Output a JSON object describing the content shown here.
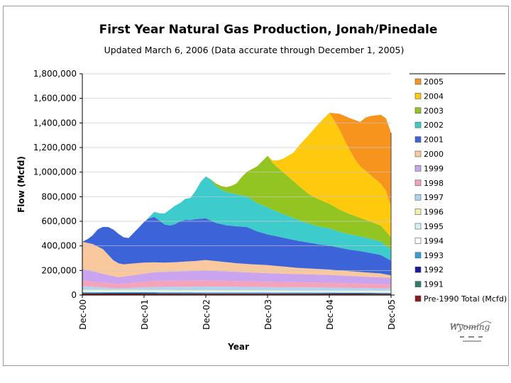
{
  "chart_data": {
    "type": "area",
    "stacked": true,
    "title": "First Year Natural Gas Production, Jonah/Pinedale",
    "subtitle": "Updated March 6, 2006 (Data accurate through December 1, 2005)",
    "xlabel": "Year",
    "ylabel": "Flow (Mcfd)",
    "x_ticks": [
      "Dec-00",
      "Dec-01",
      "Dec-02",
      "Dec-03",
      "Dec-04",
      "Dec-05"
    ],
    "x_months": [
      0,
      12,
      24,
      36,
      48,
      60
    ],
    "y_ticks": [
      "0",
      "200,000",
      "400,000",
      "600,000",
      "800,000",
      "1,000,000",
      "1,200,000",
      "1,400,000",
      "1,600,000",
      "1,800,000"
    ],
    "ylim": [
      0,
      1800000
    ],
    "legend_position": "right",
    "series": [
      {
        "name": "Pre-1990 Total (Mcfd)",
        "color": "#8b1a1a",
        "pts": [
          [
            0,
            12000
          ],
          [
            60,
            8000
          ]
        ]
      },
      {
        "name": "1991",
        "color": "#2e7d6e",
        "pts": [
          [
            0,
            3000
          ],
          [
            60,
            3000
          ]
        ]
      },
      {
        "name": "1992",
        "color": "#1a1aa0",
        "pts": [
          [
            0,
            3000
          ],
          [
            60,
            3000
          ]
        ]
      },
      {
        "name": "1993",
        "color": "#33a0d8",
        "pts": [
          [
            0,
            6000
          ],
          [
            60,
            5000
          ]
        ]
      },
      {
        "name": "1994",
        "color": "#ffffff",
        "pts": [
          [
            0,
            5000
          ],
          [
            60,
            5000
          ]
        ]
      },
      {
        "name": "1995",
        "color": "#d5f2f2",
        "pts": [
          [
            0,
            8000
          ],
          [
            60,
            6000
          ]
        ]
      },
      {
        "name": "1996",
        "color": "#f5f0a8",
        "pts": [
          [
            0,
            6000
          ],
          [
            60,
            5000
          ]
        ]
      },
      {
        "name": "1997",
        "color": "#b0d4f0",
        "pts": [
          [
            0,
            30000
          ],
          [
            7,
            12000
          ],
          [
            14,
            25000
          ],
          [
            24,
            30000
          ],
          [
            36,
            26000
          ],
          [
            48,
            24000
          ],
          [
            60,
            18000
          ]
        ]
      },
      {
        "name": "1998",
        "color": "#f5a3bb",
        "pts": [
          [
            0,
            45000
          ],
          [
            7,
            35000
          ],
          [
            14,
            50000
          ],
          [
            24,
            50000
          ],
          [
            36,
            44000
          ],
          [
            48,
            40000
          ],
          [
            60,
            32000
          ]
        ]
      },
      {
        "name": "1999",
        "color": "#caa4ee",
        "pts": [
          [
            0,
            95000
          ],
          [
            7,
            55000
          ],
          [
            14,
            70000
          ],
          [
            24,
            80000
          ],
          [
            36,
            70000
          ],
          [
            48,
            63000
          ],
          [
            60,
            55000
          ]
        ]
      },
      {
        "name": "2000",
        "color": "#f9c89d",
        "pts": [
          [
            0,
            220000
          ],
          [
            2,
            222000
          ],
          [
            4,
            200000
          ],
          [
            6,
            130000
          ],
          [
            8,
            100000
          ],
          [
            10,
            95000
          ],
          [
            12,
            90000
          ],
          [
            14,
            80000
          ],
          [
            16,
            75000
          ],
          [
            18,
            75000
          ],
          [
            20,
            78000
          ],
          [
            22,
            80000
          ],
          [
            24,
            85000
          ],
          [
            26,
            80000
          ],
          [
            28,
            75000
          ],
          [
            30,
            70000
          ],
          [
            32,
            68000
          ],
          [
            34,
            66000
          ],
          [
            36,
            65000
          ],
          [
            38,
            60000
          ],
          [
            40,
            55000
          ],
          [
            42,
            50000
          ],
          [
            44,
            48000
          ],
          [
            46,
            46000
          ],
          [
            48,
            44000
          ],
          [
            50,
            40000
          ],
          [
            52,
            38000
          ],
          [
            54,
            36000
          ],
          [
            56,
            34000
          ],
          [
            58,
            32000
          ],
          [
            60,
            20000
          ]
        ]
      },
      {
        "name": "2001",
        "color": "#3d63d8",
        "pts": [
          [
            0,
            0
          ],
          [
            1,
            30000
          ],
          [
            2,
            70000
          ],
          [
            3,
            140000
          ],
          [
            4,
            180000
          ],
          [
            5,
            225000
          ],
          [
            6,
            250000
          ],
          [
            7,
            240000
          ],
          [
            8,
            220000
          ],
          [
            9,
            210000
          ],
          [
            10,
            250000
          ],
          [
            11,
            290000
          ],
          [
            12,
            330000
          ],
          [
            13,
            360000
          ],
          [
            14,
            370000
          ],
          [
            15,
            340000
          ],
          [
            16,
            310000
          ],
          [
            17,
            300000
          ],
          [
            18,
            310000
          ],
          [
            19,
            330000
          ],
          [
            20,
            340000
          ],
          [
            21,
            335000
          ],
          [
            22,
            340000
          ],
          [
            23,
            340000
          ],
          [
            24,
            340000
          ],
          [
            26,
            310000
          ],
          [
            28,
            300000
          ],
          [
            30,
            300000
          ],
          [
            32,
            300000
          ],
          [
            34,
            270000
          ],
          [
            36,
            250000
          ],
          [
            38,
            240000
          ],
          [
            40,
            230000
          ],
          [
            42,
            220000
          ],
          [
            44,
            210000
          ],
          [
            46,
            200000
          ],
          [
            48,
            195000
          ],
          [
            50,
            185000
          ],
          [
            52,
            175000
          ],
          [
            54,
            170000
          ],
          [
            56,
            160000
          ],
          [
            58,
            150000
          ],
          [
            60,
            120000
          ]
        ]
      },
      {
        "name": "2002",
        "color": "#3ecbcb",
        "pts": [
          [
            0,
            0
          ],
          [
            12,
            0
          ],
          [
            13,
            10000
          ],
          [
            14,
            40000
          ],
          [
            15,
            60000
          ],
          [
            16,
            90000
          ],
          [
            17,
            130000
          ],
          [
            18,
            150000
          ],
          [
            19,
            150000
          ],
          [
            20,
            170000
          ],
          [
            21,
            180000
          ],
          [
            22,
            230000
          ],
          [
            23,
            300000
          ],
          [
            24,
            340000
          ],
          [
            25,
            330000
          ],
          [
            26,
            300000
          ],
          [
            27,
            280000
          ],
          [
            28,
            270000
          ],
          [
            30,
            260000
          ],
          [
            32,
            250000
          ],
          [
            34,
            230000
          ],
          [
            36,
            220000
          ],
          [
            38,
            200000
          ],
          [
            40,
            185000
          ],
          [
            42,
            170000
          ],
          [
            44,
            155000
          ],
          [
            46,
            145000
          ],
          [
            48,
            140000
          ],
          [
            50,
            130000
          ],
          [
            52,
            125000
          ],
          [
            54,
            120000
          ],
          [
            56,
            115000
          ],
          [
            58,
            110000
          ],
          [
            60,
            90000
          ]
        ]
      },
      {
        "name": "2003",
        "color": "#92c422",
        "pts": [
          [
            0,
            0
          ],
          [
            24,
            0
          ],
          [
            25,
            5000
          ],
          [
            26,
            20000
          ],
          [
            27,
            30000
          ],
          [
            28,
            40000
          ],
          [
            29,
            60000
          ],
          [
            30,
            90000
          ],
          [
            31,
            150000
          ],
          [
            32,
            200000
          ],
          [
            33,
            250000
          ],
          [
            34,
            300000
          ],
          [
            35,
            360000
          ],
          [
            36,
            420000
          ],
          [
            37,
            380000
          ],
          [
            38,
            360000
          ],
          [
            39,
            340000
          ],
          [
            40,
            320000
          ],
          [
            42,
            280000
          ],
          [
            44,
            240000
          ],
          [
            46,
            220000
          ],
          [
            48,
            200000
          ],
          [
            50,
            180000
          ],
          [
            52,
            165000
          ],
          [
            54,
            150000
          ],
          [
            56,
            140000
          ],
          [
            58,
            130000
          ],
          [
            60,
            100000
          ]
        ]
      },
      {
        "name": "2004",
        "color": "#ffc90e",
        "pts": [
          [
            0,
            0
          ],
          [
            36,
            0
          ],
          [
            37,
            20000
          ],
          [
            38,
            60000
          ],
          [
            39,
            110000
          ],
          [
            40,
            170000
          ],
          [
            41,
            230000
          ],
          [
            42,
            320000
          ],
          [
            43,
            400000
          ],
          [
            44,
            480000
          ],
          [
            45,
            550000
          ],
          [
            46,
            620000
          ],
          [
            47,
            680000
          ],
          [
            48,
            740000
          ],
          [
            49,
            700000
          ],
          [
            50,
            650000
          ],
          [
            51,
            580000
          ],
          [
            52,
            520000
          ],
          [
            53,
            460000
          ],
          [
            54,
            420000
          ],
          [
            55,
            400000
          ],
          [
            56,
            380000
          ],
          [
            57,
            360000
          ],
          [
            58,
            340000
          ],
          [
            59,
            330000
          ],
          [
            60,
            250000
          ]
        ]
      },
      {
        "name": "2005",
        "color": "#f7941d",
        "pts": [
          [
            0,
            0
          ],
          [
            48,
            0
          ],
          [
            49,
            60000
          ],
          [
            50,
            130000
          ],
          [
            51,
            200000
          ],
          [
            52,
            260000
          ],
          [
            53,
            320000
          ],
          [
            54,
            360000
          ],
          [
            55,
            430000
          ],
          [
            56,
            480000
          ],
          [
            57,
            520000
          ],
          [
            58,
            560000
          ],
          [
            59,
            590000
          ],
          [
            60,
            600000
          ]
        ]
      }
    ]
  },
  "logo": {
    "text": "Wyoming"
  }
}
